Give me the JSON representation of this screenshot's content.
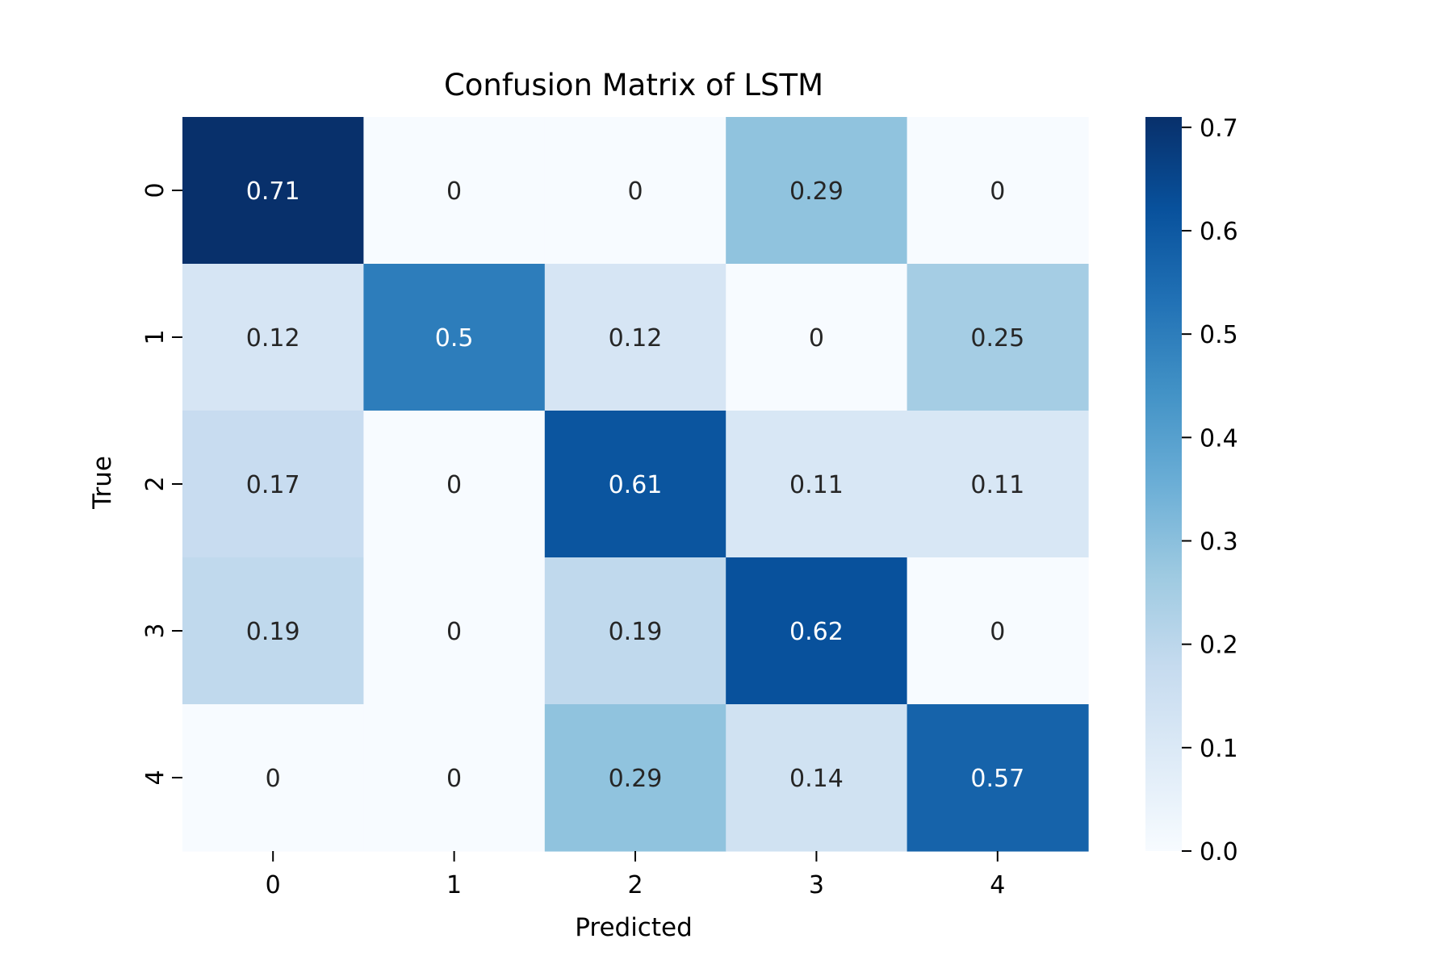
{
  "chart_data": {
    "type": "heatmap",
    "title": "Confusion Matrix of LSTM",
    "xlabel": "Predicted",
    "ylabel": "True",
    "x_categories": [
      "0",
      "1",
      "2",
      "3",
      "4"
    ],
    "y_categories": [
      "0",
      "1",
      "2",
      "3",
      "4"
    ],
    "values": [
      [
        0.71,
        0,
        0,
        0.29,
        0
      ],
      [
        0.12,
        0.5,
        0.12,
        0,
        0.25
      ],
      [
        0.17,
        0,
        0.61,
        0.11,
        0.11
      ],
      [
        0.19,
        0,
        0.19,
        0.62,
        0
      ],
      [
        0,
        0,
        0.29,
        0.14,
        0.57
      ]
    ],
    "cell_labels": [
      [
        "0.71",
        "0",
        "0",
        "0.29",
        "0"
      ],
      [
        "0.12",
        "0.5",
        "0.12",
        "0",
        "0.25"
      ],
      [
        "0.17",
        "0",
        "0.61",
        "0.11",
        "0.11"
      ],
      [
        "0.19",
        "0",
        "0.19",
        "0.62",
        "0"
      ],
      [
        "0",
        "0",
        "0.29",
        "0.14",
        "0.57"
      ]
    ],
    "colorbar": {
      "min": 0.0,
      "max": 0.71,
      "ticks": [
        0.0,
        0.1,
        0.2,
        0.3,
        0.4,
        0.5,
        0.6,
        0.7
      ],
      "tick_labels": [
        "0.0",
        "0.1",
        "0.2",
        "0.3",
        "0.4",
        "0.5",
        "0.6",
        "0.7"
      ]
    },
    "colormap": "Blues",
    "grid": false
  },
  "colors": {
    "dark_text": "#262626",
    "light_text": "#ffffff",
    "axis": "#000000"
  }
}
